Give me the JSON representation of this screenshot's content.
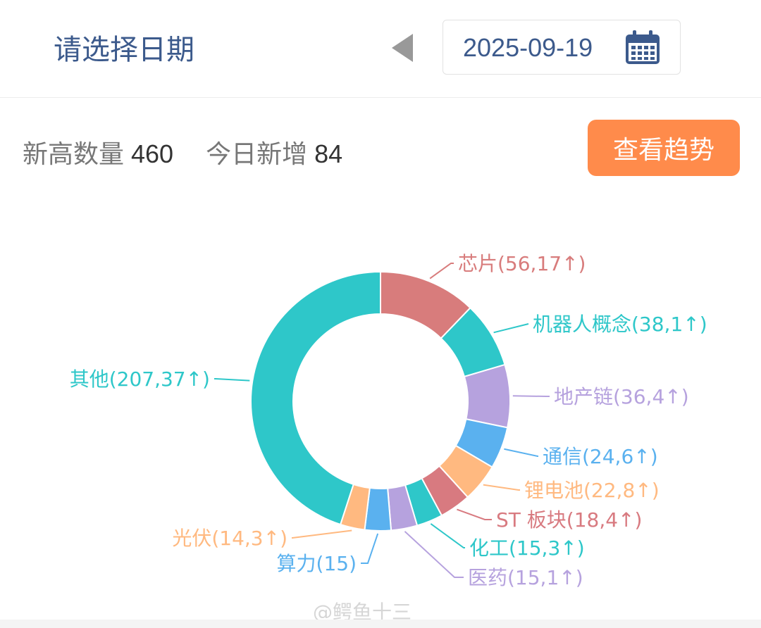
{
  "header": {
    "title": "请选择日期",
    "date": "2025-09-19"
  },
  "stats": {
    "high_label": "新高数量",
    "high_value": "460",
    "new_label": "今日新增",
    "new_value": "84"
  },
  "trend_button": "查看趋势",
  "watermark": "@鳄鱼十三",
  "chart_data": {
    "type": "pie",
    "variant": "donut",
    "start_angle_deg": 90,
    "direction": "clockwise",
    "slices": [
      {
        "name": "芯片",
        "value": 56,
        "increase": 17,
        "label": "芯片(56,17↑)",
        "color": "#d87c7c"
      },
      {
        "name": "机器人概念",
        "value": 38,
        "increase": 1,
        "label": "机器人概念(38,1↑)",
        "color": "#2ec7c9"
      },
      {
        "name": "地产链",
        "value": 36,
        "increase": 4,
        "label": "地产链(36,4↑)",
        "color": "#b6a2de"
      },
      {
        "name": "通信",
        "value": 24,
        "increase": 6,
        "label": "通信(24,6↑)",
        "color": "#5ab1ef"
      },
      {
        "name": "锂电池",
        "value": 22,
        "increase": 8,
        "label": "锂电池(22,8↑)",
        "color": "#ffb980"
      },
      {
        "name": "ST板块",
        "value": 18,
        "increase": 4,
        "label": "ST 板块(18,4↑)",
        "color": "#d87a80"
      },
      {
        "name": "化工",
        "value": 15,
        "increase": 3,
        "label": "化工(15,3↑)",
        "color": "#2ec7c9"
      },
      {
        "name": "医药",
        "value": 15,
        "increase": 1,
        "label": "医药(15,1↑)",
        "color": "#b6a2de"
      },
      {
        "name": "算力",
        "value": 15,
        "increase": null,
        "label": "算力(15)",
        "color": "#5ab1ef"
      },
      {
        "name": "光伏",
        "value": 14,
        "increase": 3,
        "label": "光伏(14,3↑)",
        "color": "#ffb980"
      },
      {
        "name": "其他",
        "value": 207,
        "increase": 37,
        "label": "其他(207,37↑)",
        "color": "#2ec7c9"
      }
    ]
  }
}
